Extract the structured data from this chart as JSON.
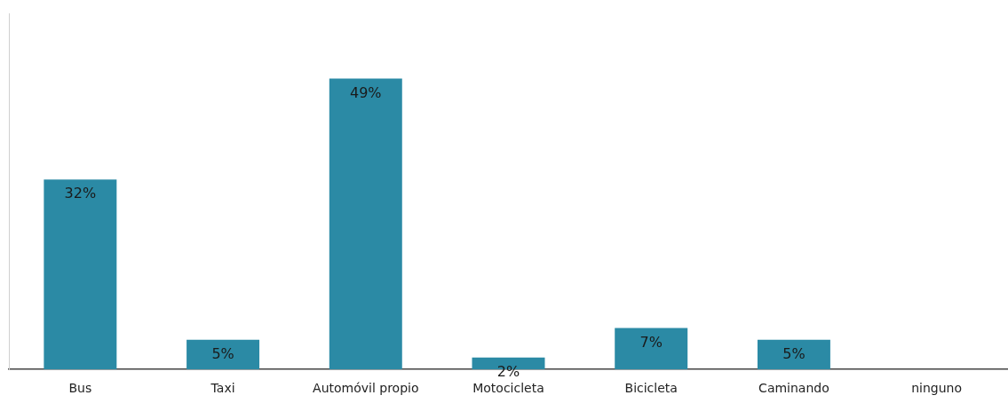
{
  "chart_data": {
    "type": "bar",
    "categories": [
      "Bus",
      "Taxi",
      "Automóvil propio",
      "Motocicleta",
      "Bicicleta",
      "Caminando",
      "ninguno"
    ],
    "values": [
      32,
      5,
      49,
      2,
      7,
      5,
      0
    ],
    "value_labels": [
      "32%",
      "5%",
      "49%",
      "2%",
      "7%",
      "5%",
      null
    ],
    "color": "#2b8aa5",
    "ylim": [
      0,
      60
    ],
    "tick_labels": "x"
  }
}
